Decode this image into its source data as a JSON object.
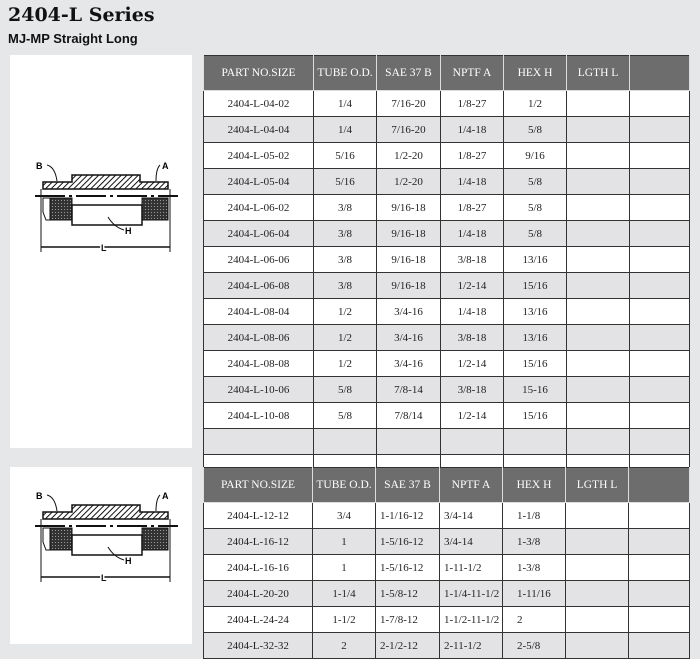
{
  "title": "2404-L Series",
  "subtitle": "MJ-MP Straight Long",
  "diagram_labels": {
    "b": "B",
    "a": "A",
    "h": "H",
    "l": "L"
  },
  "columns": [
    "PART NO.SIZE",
    "TUBE  O.D.",
    "SAE  37  B",
    "NPTF  A",
    "HEX  H",
    "LGTH  L",
    ""
  ],
  "table1": [
    [
      "2404-L-04-02",
      "1/4",
      "7/16-20",
      "1/8-27",
      "1/2",
      "",
      ""
    ],
    [
      "2404-L-04-04",
      "1/4",
      "7/16-20",
      "1/4-18",
      "5/8",
      "",
      ""
    ],
    [
      "2404-L-05-02",
      "5/16",
      "1/2-20",
      "1/8-27",
      "9/16",
      "",
      ""
    ],
    [
      "2404-L-05-04",
      "5/16",
      "1/2-20",
      "1/4-18",
      "5/8",
      "",
      ""
    ],
    [
      "2404-L-06-02",
      "3/8",
      "9/16-18",
      "1/8-27",
      "5/8",
      "",
      ""
    ],
    [
      "2404-L-06-04",
      "3/8",
      "9/16-18",
      "1/4-18",
      "5/8",
      "",
      ""
    ],
    [
      "2404-L-06-06",
      "3/8",
      "9/16-18",
      "3/8-18",
      "13/16",
      "",
      ""
    ],
    [
      "2404-L-06-08",
      "3/8",
      "9/16-18",
      "1/2-14",
      "15/16",
      "",
      ""
    ],
    [
      "2404-L-08-04",
      "1/2",
      "3/4-16",
      "1/4-18",
      "13/16",
      "",
      ""
    ],
    [
      "2404-L-08-06",
      "1/2",
      "3/4-16",
      "3/8-18",
      "13/16",
      "",
      ""
    ],
    [
      "2404-L-08-08",
      "1/2",
      "3/4-16",
      "1/2-14",
      "15/16",
      "",
      ""
    ],
    [
      "2404-L-10-06",
      "5/8",
      "7/8-14",
      "3/8-18",
      "15-16",
      "",
      ""
    ],
    [
      "2404-L-10-08",
      "5/8",
      "7/8/14",
      "1/2-14",
      "15/16",
      "",
      ""
    ],
    [
      "",
      "",
      "",
      "",
      "",
      "",
      ""
    ],
    [
      "",
      "",
      "",
      "",
      "",
      "",
      ""
    ]
  ],
  "table2": [
    [
      "2404-L-12-12",
      "3/4",
      "1-1/16-12",
      "3/4-14",
      "1-1/8",
      "",
      ""
    ],
    [
      "2404-L-16-12",
      "1",
      "1-5/16-12",
      "3/4-14",
      "1-3/8",
      "",
      ""
    ],
    [
      "2404-L-16-16",
      "1",
      "1-5/16-12",
      "1-11-1/2",
      "1-3/8",
      "",
      ""
    ],
    [
      "2404-L-20-20",
      "1-1/4",
      "1-5/8-12",
      "1-1/4-11-1/2",
      "1-11/16",
      "",
      ""
    ],
    [
      "2404-L-24-24",
      "1-1/2",
      "1-7/8-12",
      "1-1/2-11-1/2",
      "2",
      "",
      ""
    ],
    [
      "2404-L-32-32",
      "2",
      "2-1/2-12",
      "2-11-1/2",
      "2-5/8",
      "",
      ""
    ]
  ]
}
